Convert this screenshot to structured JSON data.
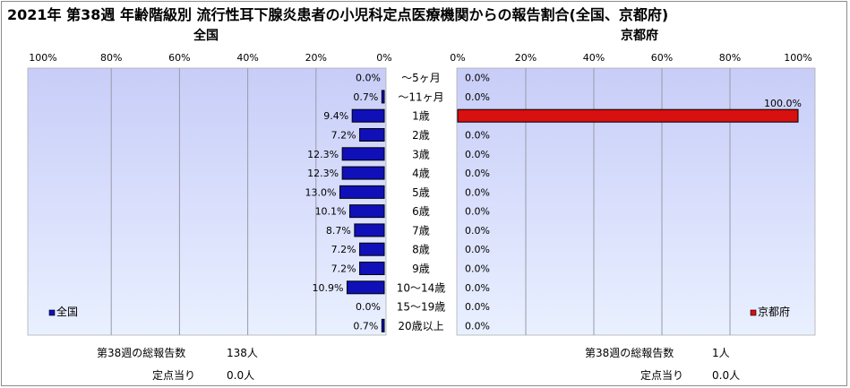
{
  "title": "2021年 第38週 年齢階級別 流行性耳下腺炎患者の小児科定点医療機関からの報告割合(全国、京都府)",
  "colors": {
    "plot_bg_top": "#c8cdf8",
    "plot_bg_bottom": "#e9f0ff",
    "national_bar": "#1010b8",
    "kyoto_bar": "#d81010"
  },
  "chart_data": [
    {
      "type": "bar",
      "orientation": "horizontal",
      "direction": "right-to-left",
      "title": "全国",
      "legend": "全国",
      "legend_position": "bottom-left",
      "xlim": [
        0,
        100
      ],
      "ticks": [
        "100%",
        "80%",
        "60%",
        "40%",
        "20%",
        "0%"
      ],
      "categories": [
        "～5ヶ月",
        "～11ヶ月",
        "1歳",
        "2歳",
        "3歳",
        "4歳",
        "5歳",
        "6歳",
        "7歳",
        "8歳",
        "9歳",
        "10～14歳",
        "15～19歳",
        "20歳以上"
      ],
      "values": [
        0.0,
        0.7,
        9.4,
        7.2,
        12.3,
        12.3,
        13.0,
        10.1,
        8.7,
        7.2,
        7.2,
        10.9,
        0.0,
        0.7
      ],
      "labels": [
        "0.0%",
        "0.7%",
        "9.4%",
        "7.2%",
        "12.3%",
        "12.3%",
        "13.0%",
        "10.1%",
        "8.7%",
        "7.2%",
        "7.2%",
        "10.9%",
        "0.0%",
        "0.7%"
      ],
      "grid": true
    },
    {
      "type": "bar",
      "orientation": "horizontal",
      "direction": "left-to-right",
      "title": "京都府",
      "legend": "京都府",
      "legend_position": "bottom-right",
      "xlim": [
        0,
        100
      ],
      "ticks": [
        "0%",
        "20%",
        "40%",
        "60%",
        "80%",
        "100%"
      ],
      "categories": [
        "～5ヶ月",
        "～11ヶ月",
        "1歳",
        "2歳",
        "3歳",
        "4歳",
        "5歳",
        "6歳",
        "7歳",
        "8歳",
        "9歳",
        "10～14歳",
        "15～19歳",
        "20歳以上"
      ],
      "values": [
        0.0,
        0.0,
        100.0,
        0.0,
        0.0,
        0.0,
        0.0,
        0.0,
        0.0,
        0.0,
        0.0,
        0.0,
        0.0,
        0.0
      ],
      "labels": [
        "0.0%",
        "0.0%",
        "100.0%",
        "0.0%",
        "0.0%",
        "0.0%",
        "0.0%",
        "0.0%",
        "0.0%",
        "0.0%",
        "0.0%",
        "0.0%",
        "0.0%",
        "0.0%"
      ],
      "grid": true
    }
  ],
  "footer": {
    "national": {
      "total_label": "第38週の総報告数",
      "total_value": "138人",
      "per_label": "定点当り",
      "per_value": "0.0人"
    },
    "kyoto": {
      "total_label": "第38週の総報告数",
      "total_value": "1人",
      "per_label": "定点当り",
      "per_value": "0.0人"
    }
  }
}
